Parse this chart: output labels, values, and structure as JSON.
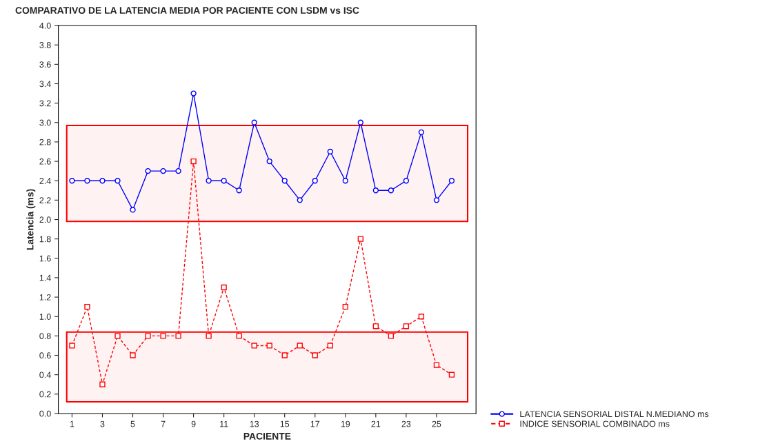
{
  "chart_data": {
    "type": "line",
    "title": "COMPARATIVO DE LA LATENCIA MEDIA POR PACIENTE CON LSDM vs ISC",
    "xlabel": "PACIENTE",
    "ylabel": "Latencia (ms)",
    "x": [
      1,
      2,
      3,
      4,
      5,
      6,
      7,
      8,
      9,
      10,
      11,
      12,
      13,
      14,
      15,
      16,
      17,
      18,
      19,
      20,
      21,
      22,
      23,
      24,
      25,
      26
    ],
    "series": [
      {
        "name": "LATENCIA SENSORIAL DISTAL N.MEDIANO ms",
        "color": "#0000ff",
        "marker": "circle",
        "line_style": "solid",
        "values": [
          2.4,
          2.4,
          2.4,
          2.4,
          2.1,
          2.5,
          2.5,
          2.5,
          3.3,
          2.4,
          2.4,
          2.3,
          3.0,
          2.6,
          2.4,
          2.2,
          2.4,
          2.7,
          2.4,
          3.0,
          2.3,
          2.3,
          2.4,
          2.9,
          2.2,
          2.4
        ]
      },
      {
        "name": "INDICE SENSORIAL COMBINADO ms",
        "color": "#ff0000",
        "marker": "square",
        "line_style": "dashed",
        "values": [
          0.7,
          1.1,
          0.3,
          0.8,
          0.6,
          0.8,
          0.8,
          0.8,
          2.6,
          0.8,
          1.3,
          0.8,
          0.7,
          0.7,
          0.6,
          0.7,
          0.6,
          0.7,
          1.1,
          1.8,
          0.9,
          0.8,
          0.9,
          1.0,
          0.5,
          0.4
        ]
      }
    ],
    "bands": [
      {
        "axis": "y",
        "from": 1.98,
        "to": 2.97,
        "color": "#ff0000"
      },
      {
        "axis": "y",
        "from": 0.12,
        "to": 0.84,
        "color": "#ff0000"
      }
    ],
    "xlim": [
      0.1,
      27.6
    ],
    "xticks": [
      1,
      3,
      5,
      7,
      9,
      11,
      13,
      15,
      17,
      19,
      21,
      23,
      25
    ],
    "ylim": [
      0,
      4
    ],
    "yticks": [
      {
        "value": 0,
        "label": "0.0"
      },
      0.2,
      0.4,
      0.6,
      0.8,
      {
        "value": 1,
        "label": "1.0"
      },
      1.2,
      1.4,
      1.6,
      1.8,
      {
        "value": 2,
        "label": "2.0"
      },
      2.2,
      2.4,
      2.6,
      2.8,
      {
        "value": 3,
        "label": "3.0"
      },
      3.2,
      3.4,
      3.6,
      3.8,
      {
        "value": 4,
        "label": "4.0"
      }
    ],
    "grid": false,
    "legend": "bottom right"
  }
}
